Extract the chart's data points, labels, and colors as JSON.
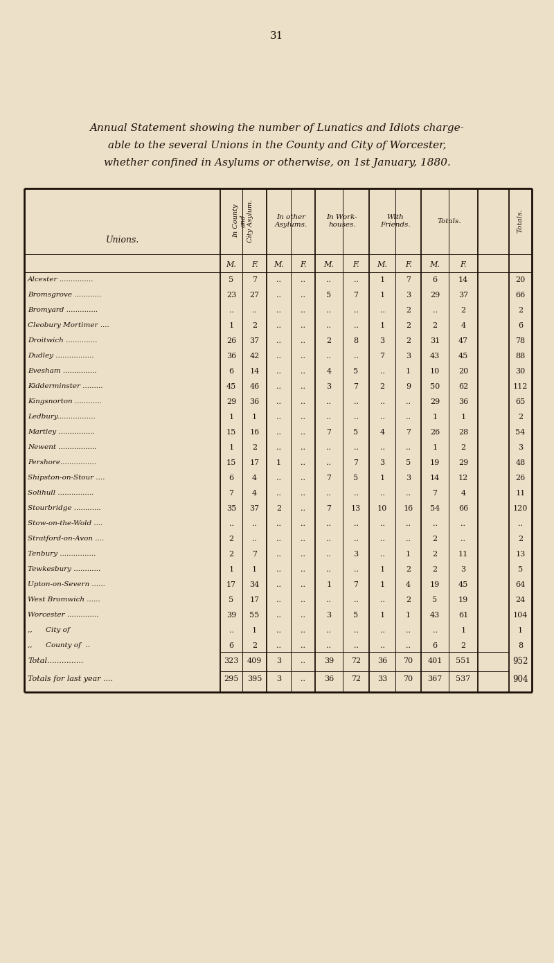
{
  "page_number": "31",
  "title_lines": [
    "Annual Statement showing the number of Lunatics and Idiots charge-",
    "able to the several Unions in the County and City of Worcester,",
    "whether confined in Asylums or otherwise, on 1st January, 1880."
  ],
  "bg_color": "#EDE0C8",
  "text_color": "#1a1008",
  "rows": [
    {
      "union": "Alcester ...............",
      "ca_m": "5",
      "ca_f": "7",
      "oa_m": "..",
      "oa_f": "..",
      "wh_m": "..",
      "wh_f": "..",
      "fr_m": "1",
      "fr_f": "7",
      "tot_m": "6",
      "tot_f": "14",
      "total": "20"
    },
    {
      "union": "Bromsgrove ............",
      "ca_m": "23",
      "ca_f": "27",
      "oa_m": "..",
      "oa_f": "..",
      "wh_m": "5",
      "wh_f": "7",
      "fr_m": "1",
      "fr_f": "3",
      "tot_m": "29",
      "tot_f": "37",
      "total": "66"
    },
    {
      "union": "Bromyard ..............",
      "ca_m": "..",
      "ca_f": "..",
      "oa_m": "..",
      "oa_f": "..",
      "wh_m": "..",
      "wh_f": "..",
      "fr_m": "..",
      "fr_f": "2",
      "tot_m": "..",
      "tot_f": "2",
      "total": "2"
    },
    {
      "union": "Cleobury Mortimer ....",
      "ca_m": "1",
      "ca_f": "2",
      "oa_m": "..",
      "oa_f": "..",
      "wh_m": "..",
      "wh_f": "..",
      "fr_m": "1",
      "fr_f": "2",
      "tot_m": "2",
      "tot_f": "4",
      "total": "6"
    },
    {
      "union": "Droitwich ..............",
      "ca_m": "26",
      "ca_f": "37",
      "oa_m": "..",
      "oa_f": "..",
      "wh_m": "2",
      "wh_f": "8",
      "fr_m": "3",
      "fr_f": "2",
      "tot_m": "31",
      "tot_f": "47",
      "total": "78"
    },
    {
      "union": "Dudley .................",
      "ca_m": "36",
      "ca_f": "42",
      "oa_m": "..",
      "oa_f": "..",
      "wh_m": "..",
      "wh_f": "..",
      "fr_m": "7",
      "fr_f": "3",
      "tot_m": "43",
      "tot_f": "45",
      "total": "88"
    },
    {
      "union": "Evesham ...............",
      "ca_m": "6",
      "ca_f": "14",
      "oa_m": "..",
      "oa_f": "..",
      "wh_m": "4",
      "wh_f": "5",
      "fr_m": "..",
      "fr_f": "1",
      "tot_m": "10",
      "tot_f": "20",
      "total": "30"
    },
    {
      "union": "Kidderminster .........",
      "ca_m": "45",
      "ca_f": "46",
      "oa_m": "..",
      "oa_f": "..",
      "wh_m": "3",
      "wh_f": "7",
      "fr_m": "2",
      "fr_f": "9",
      "tot_m": "50",
      "tot_f": "62",
      "total": "112"
    },
    {
      "union": "Kingsnorton ............",
      "ca_m": "29",
      "ca_f": "36",
      "oa_m": "..",
      "oa_f": "..",
      "wh_m": "..",
      "wh_f": "..",
      "fr_m": "..",
      "fr_f": "..",
      "tot_m": "29",
      "tot_f": "36",
      "total": "65"
    },
    {
      "union": "Ledbury.................",
      "ca_m": "1",
      "ca_f": "1",
      "oa_m": "..",
      "oa_f": "..",
      "wh_m": "..",
      "wh_f": "..",
      "fr_m": "..",
      "fr_f": "..",
      "tot_m": "1",
      "tot_f": "1",
      "total": "2"
    },
    {
      "union": "Martley ................",
      "ca_m": "15",
      "ca_f": "16",
      "oa_m": "..",
      "oa_f": "..",
      "wh_m": "7",
      "wh_f": "5",
      "fr_m": "4",
      "fr_f": "7",
      "tot_m": "26",
      "tot_f": "28",
      "total": "54"
    },
    {
      "union": "Newent .................",
      "ca_m": "1",
      "ca_f": "2",
      "oa_m": "..",
      "oa_f": "..",
      "wh_m": "..",
      "wh_f": "..",
      "fr_m": "..",
      "fr_f": "..",
      "tot_m": "1",
      "tot_f": "2",
      "total": "3"
    },
    {
      "union": "Pershore................",
      "ca_m": "15",
      "ca_f": "17",
      "oa_m": "1",
      "oa_f": "..",
      "wh_m": "..",
      "wh_f": "7",
      "fr_m": "3",
      "fr_f": "5",
      "tot_m": "19",
      "tot_f": "29",
      "total": "48"
    },
    {
      "union": "Shipston-on-Stour ....",
      "ca_m": "6",
      "ca_f": "4",
      "oa_m": "..",
      "oa_f": "..",
      "wh_m": "7",
      "wh_f": "5",
      "fr_m": "1",
      "fr_f": "3",
      "tot_m": "14",
      "tot_f": "12",
      "total": "26"
    },
    {
      "union": "Solihull ................",
      "ca_m": "7",
      "ca_f": "4",
      "oa_m": "..",
      "oa_f": "..",
      "wh_m": "..",
      "wh_f": "..",
      "fr_m": "..",
      "fr_f": "..",
      "tot_m": "7",
      "tot_f": "4",
      "total": "11"
    },
    {
      "union": "Stourbridge ............",
      "ca_m": "35",
      "ca_f": "37",
      "oa_m": "2",
      "oa_f": "..",
      "wh_m": "7",
      "wh_f": "13",
      "fr_m": "10",
      "fr_f": "16",
      "tot_m": "54",
      "tot_f": "66",
      "total": "120"
    },
    {
      "union": "Stow-on-the-Wold ....",
      "ca_m": "..",
      "ca_f": "..",
      "oa_m": "..",
      "oa_f": "..",
      "wh_m": "..",
      "wh_f": "..",
      "fr_m": "..",
      "fr_f": "..",
      "tot_m": "..",
      "tot_f": "..",
      "total": ".."
    },
    {
      "union": "Stratford-on-Avon ....",
      "ca_m": "2",
      "ca_f": "..",
      "oa_m": "..",
      "oa_f": "..",
      "wh_m": "..",
      "wh_f": "..",
      "fr_m": "..",
      "fr_f": "..",
      "tot_m": "2",
      "tot_f": "..",
      "total": "2"
    },
    {
      "union": "Tenbury ................",
      "ca_m": "2",
      "ca_f": "7",
      "oa_m": "..",
      "oa_f": "..",
      "wh_m": "..",
      "wh_f": "3",
      "fr_m": "..",
      "fr_f": "1",
      "tot_m": "2",
      "tot_f": "11",
      "total": "13"
    },
    {
      "union": "Tewkesbury ............",
      "ca_m": "1",
      "ca_f": "1",
      "oa_m": "..",
      "oa_f": "..",
      "wh_m": "..",
      "wh_f": "..",
      "fr_m": "1",
      "fr_f": "2",
      "tot_m": "2",
      "tot_f": "3",
      "total": "5"
    },
    {
      "union": "Upton-on-Severn ......",
      "ca_m": "17",
      "ca_f": "34",
      "oa_m": "..",
      "oa_f": "..",
      "wh_m": "1",
      "wh_f": "7",
      "fr_m": "1",
      "fr_f": "4",
      "tot_m": "19",
      "tot_f": "45",
      "total": "64"
    },
    {
      "union": "West Bromwich ......",
      "ca_m": "5",
      "ca_f": "17",
      "oa_m": "..",
      "oa_f": "..",
      "wh_m": "..",
      "wh_f": "..",
      "fr_m": "..",
      "fr_f": "2",
      "tot_m": "5",
      "tot_f": "19",
      "total": "24"
    },
    {
      "union": "Worcester ..............",
      "ca_m": "39",
      "ca_f": "55",
      "oa_m": "..",
      "oa_f": "..",
      "wh_m": "3",
      "wh_f": "5",
      "fr_m": "1",
      "fr_f": "1",
      "tot_m": "43",
      "tot_f": "61",
      "total": "104"
    },
    {
      "union": ",,      City of",
      "ca_m": "..",
      "ca_f": "1",
      "oa_m": "..",
      "oa_f": "..",
      "wh_m": "..",
      "wh_f": "..",
      "fr_m": "..",
      "fr_f": "..",
      "tot_m": "..",
      "tot_f": "1",
      "total": "1"
    },
    {
      "union": ",,      County of  ..",
      "ca_m": "6",
      "ca_f": "2",
      "oa_m": "..",
      "oa_f": "..",
      "wh_m": "..",
      "wh_f": "..",
      "fr_m": "..",
      "fr_f": "..",
      "tot_m": "6",
      "tot_f": "2",
      "total": "8"
    }
  ],
  "total_row": {
    "union": "Total...............",
    "ca_m": "323",
    "ca_f": "409",
    "oa_m": "3",
    "oa_f": "..",
    "wh_m": "39",
    "wh_f": "72",
    "fr_m": "36",
    "fr_f": "70",
    "tot_m": "401",
    "tot_f": "551",
    "total": "952"
  },
  "last_year_row": {
    "union": "Totals for last year ....",
    "ca_m": "295",
    "ca_f": "395",
    "oa_m": "3",
    "oa_f": "..",
    "wh_m": "36",
    "wh_f": "72",
    "fr_m": "33",
    "fr_f": "70",
    "tot_m": "367",
    "tot_f": "537",
    "total": "904"
  }
}
